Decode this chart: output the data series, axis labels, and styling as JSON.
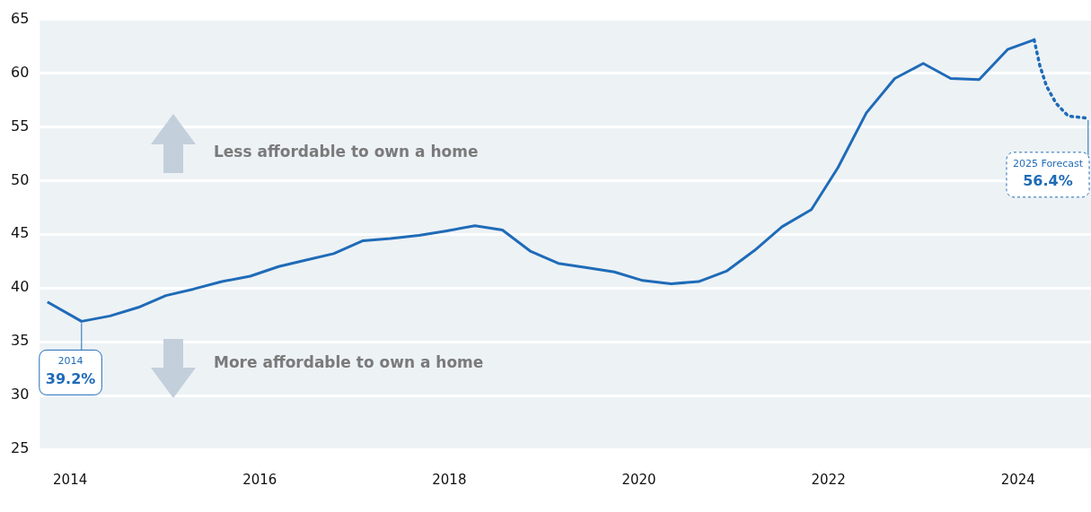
{
  "chart_data": {
    "type": "line",
    "xlim": [
      2013.68,
      2024.77
    ],
    "xticks": [
      2014,
      2016,
      2018,
      2020,
      2022,
      2024
    ],
    "ylim": [
      25,
      65
    ],
    "yticks": [
      25,
      30,
      35,
      40,
      45,
      50,
      55,
      60,
      65
    ],
    "grid": "y",
    "legend": false,
    "marker": "none",
    "series": [
      {
        "color": "#1f6bb8",
        "line_style": "solid",
        "x": [
          2013.76,
          2014.12,
          2014.42,
          2014.72,
          2015.01,
          2015.3,
          2015.6,
          2015.9,
          2016.2,
          2016.49,
          2016.78,
          2017.09,
          2017.38,
          2017.68,
          2017.96,
          2018.27,
          2018.56,
          2018.86,
          2019.15,
          2019.45,
          2019.74,
          2020.04,
          2020.34,
          2020.63,
          2020.93,
          2021.22,
          2021.51,
          2021.82,
          2022.1,
          2022.4,
          2022.7,
          2023.0,
          2023.29,
          2023.59,
          2023.89,
          2024.17
        ],
        "values": [
          38.7,
          36.9,
          37.4,
          38.2,
          39.3,
          39.9,
          40.6,
          41.1,
          42.0,
          42.6,
          43.2,
          44.4,
          44.6,
          44.9,
          45.3,
          45.8,
          45.4,
          43.4,
          42.3,
          41.9,
          41.5,
          40.7,
          40.4,
          40.6,
          41.6,
          43.5,
          45.7,
          47.3,
          51.2,
          56.3,
          59.5,
          60.9,
          59.5,
          59.4,
          62.2,
          63.1
        ]
      },
      {
        "color": "#1f6bb8",
        "line_style": "dotted",
        "x": [
          2024.17,
          2024.23,
          2024.3,
          2024.4,
          2024.53,
          2024.74
        ],
        "values": [
          63.1,
          60.7,
          58.8,
          57.2,
          56.0,
          55.8
        ]
      }
    ],
    "annotations": [
      {
        "text": "2014\n39.2%",
        "x": 2014.12,
        "y": 36.9
      },
      {
        "text": "2025 Forecast\n56.4%",
        "x": 2024.74,
        "y": 55.8
      },
      "Less affordable to own a home",
      "More affordable to own a home"
    ]
  }
}
